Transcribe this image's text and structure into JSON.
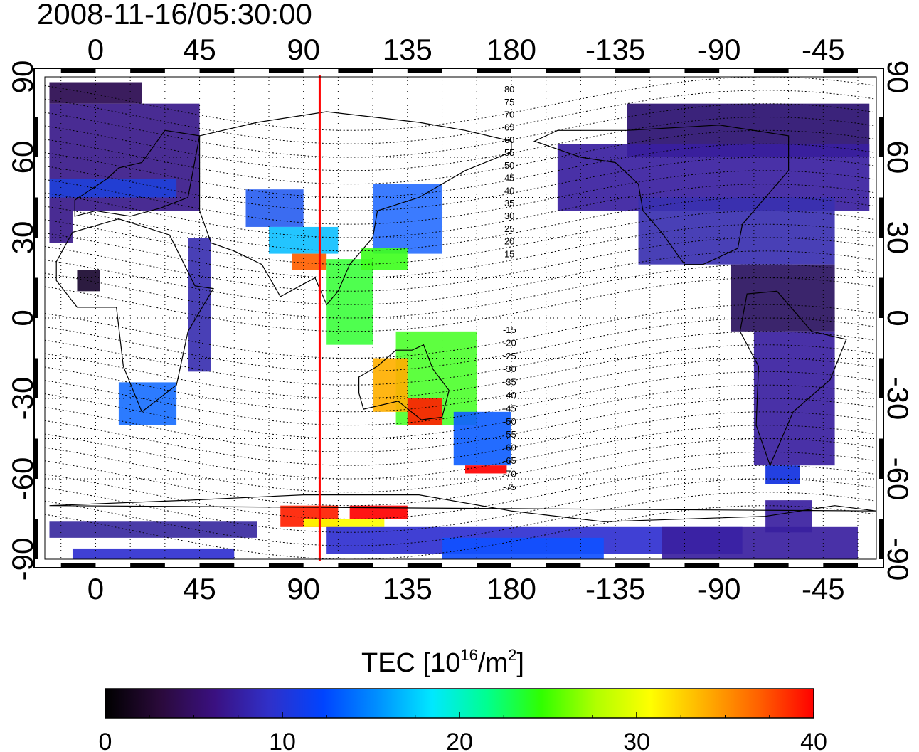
{
  "title": "2008-11-16/05:30:00",
  "map": {
    "top_lon_labels": [
      "0",
      "45",
      "90",
      "135",
      "180",
      "-135",
      "-90",
      "-45"
    ],
    "bottom_lon_labels": [
      "0",
      "45",
      "90",
      "135",
      "180",
      "-135",
      "-90",
      "-45"
    ],
    "left_lat_labels": [
      "90",
      "60",
      "30",
      "0",
      "-30",
      "-60",
      "-90"
    ],
    "right_lat_labels": [
      "90",
      "60",
      "30",
      "0",
      "-30",
      "-60",
      "-90"
    ],
    "lon_ticks_deg": [
      0,
      45,
      90,
      135,
      180,
      225,
      270,
      315
    ],
    "lat_ticks_deg": [
      90,
      60,
      30,
      0,
      -30,
      -60,
      -90
    ],
    "lon_range_deg": [
      -22,
      338
    ],
    "lat_range_deg": [
      -90,
      90
    ],
    "terminator_longitude_deg": 97,
    "terminator_color": "#ff0000",
    "contour_labels_north": [
      "80",
      "75",
      "70",
      "65",
      "60",
      "55",
      "50",
      "45",
      "40",
      "35",
      "30",
      "25",
      "20",
      "15"
    ],
    "contour_labels_south": [
      "-15",
      "-20",
      "-25",
      "-30",
      "-35",
      "-40",
      "-45",
      "-50",
      "-55",
      "-60",
      "-65",
      "-70",
      "-75"
    ]
  },
  "colorbar": {
    "title_main": "TEC  [10",
    "title_exp": "16",
    "title_mid": "/m",
    "title_exp2": "2",
    "title_end": "]",
    "min": 0,
    "max": 40,
    "tick_labels": [
      "0",
      "10",
      "20",
      "30",
      "40"
    ],
    "tick_values": [
      0,
      10,
      20,
      30,
      40
    ],
    "colors": [
      "#000000",
      "#2a0a3a",
      "#3a1080",
      "#3030c8",
      "#0044ff",
      "#0090ff",
      "#00e8ff",
      "#00ff90",
      "#30ff00",
      "#b0ff00",
      "#ffff00",
      "#ffb000",
      "#ff6000",
      "#ff0000"
    ]
  }
}
